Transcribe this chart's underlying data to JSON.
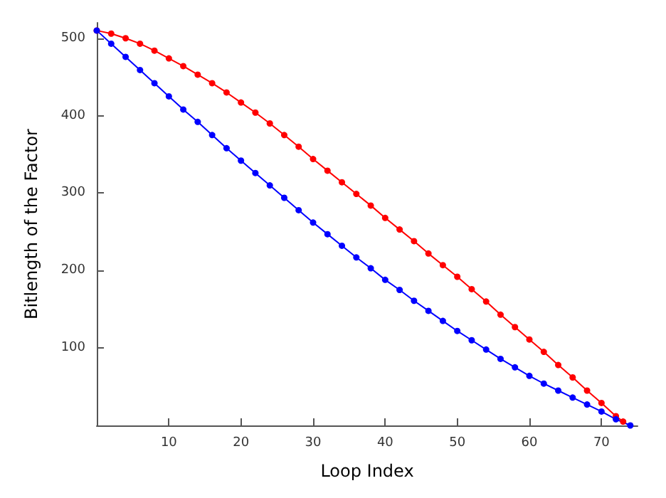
{
  "chart_data": {
    "type": "line",
    "xlabel": "Loop Index",
    "ylabel": "Bitlength of the Factor",
    "xlim": [
      0,
      75
    ],
    "ylim": [
      0,
      520
    ],
    "xticks": [
      10,
      20,
      30,
      40,
      50,
      60,
      70
    ],
    "yticks": [
      100,
      200,
      300,
      400,
      500
    ],
    "grid": false,
    "marker": "circle",
    "line_style": "solid",
    "series": [
      {
        "color": "#ff0000",
        "x": [
          0,
          2,
          4,
          6,
          8,
          10,
          12,
          14,
          16,
          18,
          20,
          22,
          24,
          26,
          28,
          30,
          32,
          34,
          36,
          38,
          40,
          42,
          44,
          46,
          48,
          50,
          52,
          54,
          56,
          58,
          60,
          62,
          64,
          66,
          68,
          70,
          72,
          73
        ],
        "values": [
          510,
          506,
          500,
          493,
          484,
          474,
          464,
          453,
          442,
          430,
          417,
          404,
          390,
          375,
          360,
          344,
          329,
          314,
          299,
          284,
          268,
          253,
          238,
          222,
          207,
          192,
          176,
          160,
          143,
          127,
          111,
          95,
          78,
          62,
          45,
          29,
          12,
          5
        ]
      },
      {
        "color": "#0000ff",
        "x": [
          0,
          2,
          4,
          6,
          8,
          10,
          12,
          14,
          16,
          18,
          20,
          22,
          24,
          26,
          28,
          30,
          32,
          34,
          36,
          38,
          40,
          42,
          44,
          46,
          48,
          50,
          52,
          54,
          56,
          58,
          60,
          62,
          64,
          66,
          68,
          70,
          72,
          74
        ],
        "values": [
          510,
          493,
          476,
          459,
          442,
          425,
          408,
          392,
          375,
          358,
          342,
          326,
          310,
          294,
          278,
          262,
          247,
          232,
          217,
          203,
          188,
          175,
          161,
          148,
          135,
          122,
          110,
          98,
          86,
          75,
          64,
          54,
          45,
          36,
          27,
          18,
          8,
          0
        ]
      }
    ]
  }
}
